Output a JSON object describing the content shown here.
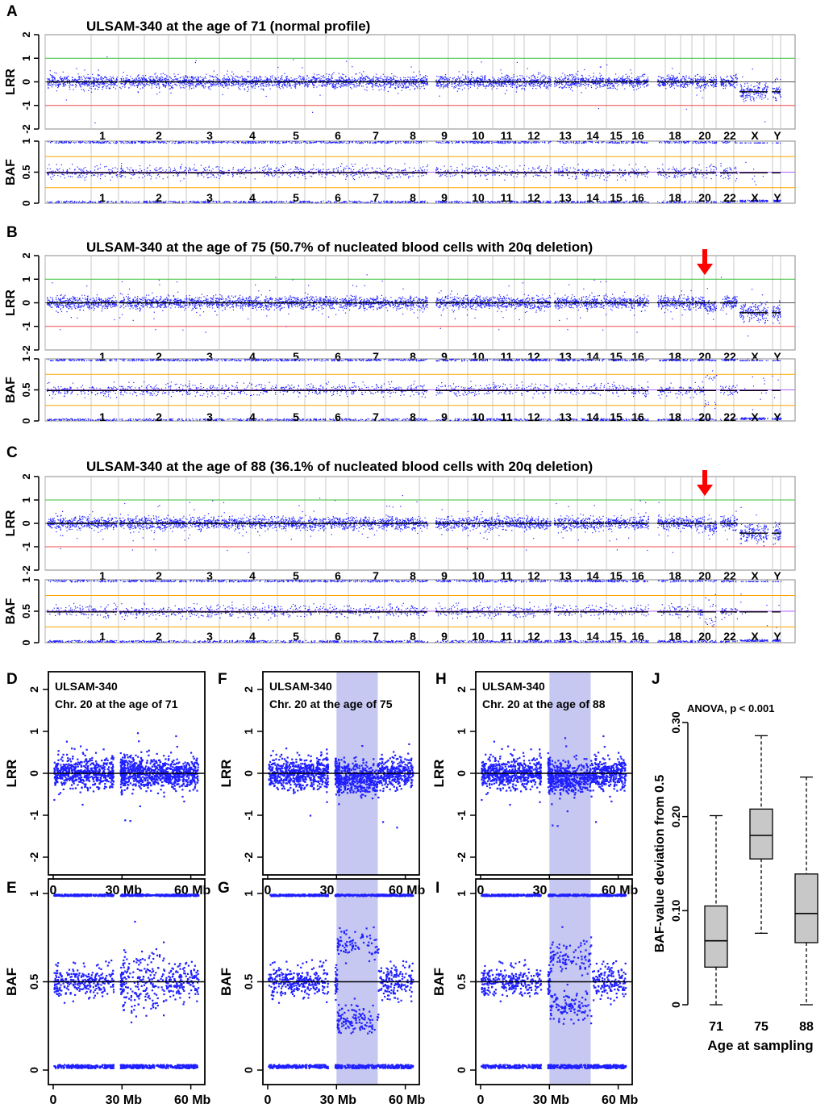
{
  "colors": {
    "points": "#1f1fff",
    "dark": "#000000",
    "arrow": "#ff0000",
    "green": "#3ac23a",
    "red": "#f04848",
    "orange": "#ffa500",
    "purple": "#b060ff",
    "shade": "#c6c8f2",
    "box": "#c8c8c8"
  },
  "genome_chromosomes": [
    "1",
    "2",
    "3",
    "4",
    "5",
    "6",
    "7",
    "8",
    "9",
    "10",
    "11",
    "12",
    "13",
    "14",
    "15",
    "16",
    "18",
    "20",
    "22",
    "X",
    "Y"
  ],
  "genome_panels": [
    {
      "letter": "A",
      "title": "ULSAM-340 at the age of 71 (normal profile)",
      "arrow": false
    },
    {
      "letter": "B",
      "title": "ULSAM-340 at the age of 75 (50.7% of nucleated blood cells with 20q deletion)",
      "arrow": true,
      "arrow_chr": "20"
    },
    {
      "letter": "C",
      "title": "ULSAM-340 at the age of 88 (36.1% of nucleated blood cells with 20q deletion)",
      "arrow": true,
      "arrow_chr": "20"
    }
  ],
  "lrr_axis": {
    "label": "LRR",
    "ticks": [
      "2",
      "1",
      "0",
      "-1",
      "-2"
    ],
    "ylim": [
      -2,
      2
    ],
    "ref_lines": [
      {
        "y": 1,
        "color": "green"
      },
      {
        "y": -1,
        "color": "red"
      },
      {
        "y": 0,
        "color": "dark"
      }
    ]
  },
  "baf_axis": {
    "label": "BAF",
    "ticks": [
      "1",
      "0.5",
      "0"
    ],
    "ylim": [
      0,
      1
    ],
    "ref_lines": [
      {
        "y": 0.75,
        "color": "orange"
      },
      {
        "y": 0.25,
        "color": "orange"
      },
      {
        "y": 0.5,
        "color": "purple"
      }
    ]
  },
  "chr20_panels": [
    {
      "letter": "D",
      "kind": "LRR",
      "text1": "ULSAM-340",
      "text2": "Chr. 20 at the age of 71",
      "deleted_region_mb": null,
      "baf_split": 0
    },
    {
      "letter": "F",
      "kind": "LRR",
      "text1": "ULSAM-340",
      "text2": "Chr. 20 at the age of 75",
      "deleted_region_mb": [
        30,
        48
      ],
      "baf_split": 0.22
    },
    {
      "letter": "H",
      "kind": "LRR",
      "text1": "ULSAM-340",
      "text2": "Chr. 20 at the age of 88",
      "deleted_region_mb": [
        30,
        48
      ],
      "baf_split": 0.14
    },
    {
      "letter": "E",
      "kind": "BAF",
      "deleted_region_mb": null,
      "baf_split": 0
    },
    {
      "letter": "G",
      "kind": "BAF",
      "deleted_region_mb": [
        30,
        48
      ],
      "baf_split": 0.22
    },
    {
      "letter": "I",
      "kind": "BAF",
      "deleted_region_mb": [
        30,
        48
      ],
      "baf_split": 0.14
    }
  ],
  "chr20_lrr_ticks": [
    "2",
    "1",
    "0",
    "-1",
    "-2"
  ],
  "chr20_baf_ticks": [
    "1",
    "0.5",
    "0"
  ],
  "chr20_x_ticks": [
    {
      "mb": 0,
      "label": "0"
    },
    {
      "mb": 30,
      "label": "30 Mb"
    },
    {
      "mb": 60,
      "label": "60 Mb"
    }
  ],
  "chart_data": [
    {
      "type": "scatter",
      "description_panels": "A-C genome-wide LRR and BAF per chromosome",
      "chromosomes": [
        "1",
        "2",
        "3",
        "4",
        "5",
        "6",
        "7",
        "8",
        "9",
        "10",
        "11",
        "12",
        "13",
        "14",
        "15",
        "16",
        "18",
        "20",
        "22",
        "X",
        "Y"
      ],
      "lrr_ylim": [
        -2,
        2
      ],
      "baf_ylim": [
        0,
        1
      ],
      "series": [
        {
          "name": "Age 71",
          "lrr_mean": 0,
          "baf_bands": [
            0,
            0.5,
            1
          ]
        },
        {
          "name": "Age 75",
          "lrr_mean": 0,
          "chr20_del": true
        },
        {
          "name": "Age 88",
          "lrr_mean": 0,
          "chr20_del": true
        }
      ]
    },
    {
      "type": "box",
      "letter": "J",
      "title": "ANOVA, p < 0.001",
      "xlabel": "Age at sampling",
      "ylabel": "BAF-value deviation from 0.5",
      "categories": [
        "71",
        "75",
        "88"
      ],
      "yticks": [
        "0",
        "0.10",
        "0.20",
        "0.30"
      ],
      "ylim": [
        0,
        0.3
      ],
      "boxes": [
        {
          "min": 0.0,
          "q1": 0.04,
          "median": 0.068,
          "q3": 0.105,
          "max": 0.201
        },
        {
          "min": 0.076,
          "q1": 0.155,
          "median": 0.18,
          "q3": 0.208,
          "max": 0.286
        },
        {
          "min": 0.0,
          "q1": 0.066,
          "median": 0.097,
          "q3": 0.139,
          "max": 0.242
        }
      ]
    }
  ]
}
